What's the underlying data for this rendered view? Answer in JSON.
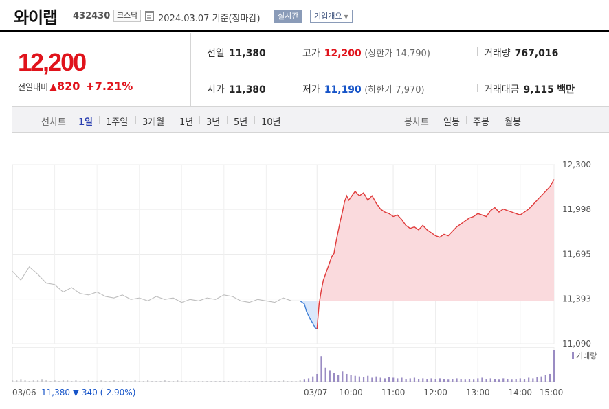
{
  "header": {
    "name": "와이랩",
    "code": "432430",
    "market": "코스닥",
    "date": "2024.03.07",
    "basis": "기준(장마감)",
    "realtime_label": "실시간",
    "company_label": "기업개요"
  },
  "summary": {
    "price": "12,200",
    "change_label": "전일대비",
    "change": "820",
    "change_rate": "+7.21%",
    "prev_close_label": "전일",
    "prev_close": "11,380",
    "open_label": "시가",
    "open": "11,380",
    "high_label": "고가",
    "high": "12,200",
    "upper_limit": "(상한가 14,790)",
    "low_label": "저가",
    "low": "11,190",
    "lower_limit": "(하한가 7,970)",
    "volume_label": "거래량",
    "volume": "767,016",
    "amount_label": "거래대금",
    "amount": "9,115",
    "amount_unit": "백만"
  },
  "tabs": {
    "line_label": "선차트",
    "line_periods": [
      "1일",
      "1주일",
      "3개월",
      "1년",
      "3년",
      "5년",
      "10년"
    ],
    "active": "1일",
    "candle_label": "봉차트",
    "candle_periods": [
      "일봉",
      "주봉",
      "월봉"
    ]
  },
  "chart_data": {
    "type": "line",
    "y_ticks": [
      "12,300",
      "11,998",
      "11,695",
      "11,393",
      "11,090"
    ],
    "ylim": [
      11090,
      12300
    ],
    "baseline": 11380,
    "x_labels": [
      "03/07",
      "10:00",
      "11:00",
      "12:00",
      "13:00",
      "14:00",
      "15:00"
    ],
    "prev_day_label": "03/06",
    "prev_day_price": "11,380",
    "prev_day_change": "▼ 340",
    "prev_day_rate": "(-2.90%)",
    "volume_legend": "거래량",
    "series": [
      {
        "values": [
          [
            0,
            11580
          ],
          [
            2,
            11520
          ],
          [
            4,
            11610
          ],
          [
            6,
            11560
          ],
          [
            8,
            11500
          ],
          [
            10,
            11490
          ],
          [
            12,
            11440
          ],
          [
            14,
            11470
          ],
          [
            16,
            11430
          ],
          [
            18,
            11420
          ],
          [
            20,
            11440
          ],
          [
            22,
            11410
          ],
          [
            24,
            11400
          ],
          [
            26,
            11420
          ],
          [
            28,
            11390
          ],
          [
            30,
            11400
          ],
          [
            32,
            11380
          ],
          [
            34,
            11410
          ],
          [
            36,
            11390
          ],
          [
            38,
            11400
          ],
          [
            40,
            11370
          ],
          [
            42,
            11390
          ],
          [
            44,
            11380
          ],
          [
            46,
            11400
          ],
          [
            48,
            11390
          ],
          [
            50,
            11420
          ],
          [
            52,
            11410
          ],
          [
            54,
            11380
          ],
          [
            56,
            11370
          ],
          [
            58,
            11390
          ],
          [
            60,
            11380
          ],
          [
            62,
            11370
          ],
          [
            64,
            11400
          ],
          [
            66,
            11380
          ],
          [
            68,
            11380
          ],
          [
            69,
            11360
          ],
          [
            69.5,
            11310
          ],
          [
            70,
            11280
          ],
          [
            70.5,
            11250
          ],
          [
            71,
            11230
          ],
          [
            71.5,
            11200
          ],
          [
            72,
            11190
          ]
        ]
      },
      {
        "values": [
          [
            72,
            11190
          ],
          [
            72.5,
            11360
          ],
          [
            73,
            11450
          ],
          [
            73.5,
            11520
          ],
          [
            74,
            11560
          ],
          [
            74.5,
            11600
          ],
          [
            75,
            11640
          ],
          [
            75.5,
            11680
          ],
          [
            76,
            11700
          ],
          [
            76.5,
            11780
          ],
          [
            77,
            11850
          ],
          [
            77.5,
            11920
          ],
          [
            78,
            11980
          ],
          [
            78.5,
            12050
          ],
          [
            79,
            12090
          ],
          [
            79.5,
            12060
          ],
          [
            80,
            12080
          ],
          [
            81,
            12120
          ],
          [
            82,
            12090
          ],
          [
            83,
            12110
          ],
          [
            84,
            12060
          ],
          [
            85,
            12090
          ],
          [
            86,
            12040
          ],
          [
            87,
            12000
          ],
          [
            88,
            11980
          ],
          [
            89,
            11970
          ],
          [
            90,
            11950
          ],
          [
            91,
            11960
          ],
          [
            92,
            11930
          ],
          [
            93,
            11890
          ],
          [
            94,
            11870
          ],
          [
            95,
            11880
          ],
          [
            96,
            11860
          ],
          [
            97,
            11890
          ],
          [
            98,
            11860
          ],
          [
            99,
            11840
          ],
          [
            100,
            11820
          ],
          [
            101,
            11810
          ],
          [
            102,
            11830
          ],
          [
            103,
            11820
          ],
          [
            104,
            11850
          ],
          [
            105,
            11880
          ],
          [
            106,
            11900
          ],
          [
            107,
            11920
          ],
          [
            108,
            11940
          ],
          [
            109,
            11950
          ],
          [
            110,
            11970
          ],
          [
            111,
            11960
          ],
          [
            112,
            11950
          ],
          [
            113,
            11990
          ],
          [
            114,
            12010
          ],
          [
            115,
            11980
          ],
          [
            116,
            12000
          ],
          [
            117,
            11990
          ],
          [
            118,
            11980
          ],
          [
            119,
            11970
          ],
          [
            120,
            11960
          ],
          [
            121,
            11980
          ],
          [
            122,
            12000
          ],
          [
            123,
            12030
          ],
          [
            124,
            12060
          ],
          [
            125,
            12090
          ],
          [
            126,
            12120
          ],
          [
            127,
            12150
          ],
          [
            128,
            12200
          ]
        ]
      }
    ],
    "volumes": [
      2,
      2,
      3,
      2,
      1,
      2,
      2,
      3,
      2,
      1,
      2,
      1,
      2,
      2,
      1,
      2,
      1,
      1,
      2,
      1,
      1,
      2,
      1,
      1,
      2,
      1,
      2,
      1,
      1,
      2,
      1,
      1,
      2,
      1,
      1,
      1,
      2,
      1,
      1,
      2,
      1,
      1,
      1,
      1,
      1,
      1,
      1,
      1,
      1,
      1,
      1,
      1,
      1,
      1,
      1,
      1,
      1,
      1,
      1,
      1,
      1,
      1,
      1,
      1,
      2,
      1,
      1,
      1,
      2,
      3,
      5,
      8,
      12,
      40,
      22,
      18,
      14,
      10,
      16,
      12,
      10,
      9,
      8,
      7,
      9,
      6,
      8,
      6,
      5,
      7,
      6,
      5,
      6,
      4,
      5,
      6,
      4,
      5,
      4,
      5,
      4,
      5,
      4,
      3,
      4,
      5,
      4,
      3,
      4,
      3,
      5,
      6,
      4,
      5,
      4,
      3,
      5,
      4,
      3,
      4,
      5,
      4,
      6,
      5,
      7,
      8,
      10,
      12,
      50
    ],
    "colors": {
      "prev_line": "#bdbdbd",
      "up_line": "#e03b3b",
      "down_line": "#3f7fd6",
      "up_fill": "#fadadd",
      "down_fill": "#dbe8fb",
      "volume_prev": "#c7c7cc",
      "volume_today": "#9a8cc3"
    }
  }
}
